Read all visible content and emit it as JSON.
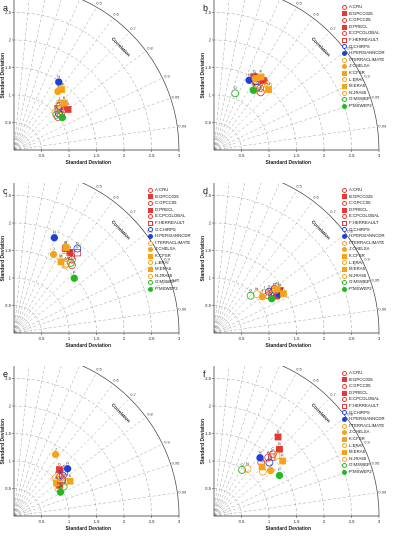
{
  "labels": {
    "std_axis": "Standard Deviation",
    "corr_axis": "Correlation"
  },
  "chart_data": [
    {
      "type": "taylor",
      "panel_label": "a",
      "xlabel": "Standard Deviation",
      "ylabel": "Standard Deviation",
      "corr_label": "Correlation",
      "std_ticks": [
        0.5,
        1,
        1.5,
        2,
        2.5,
        3
      ],
      "std_tick_labels": [
        "0.5",
        "1",
        "1.5",
        "2",
        "2.5",
        "3"
      ],
      "corr_ticks": [
        0.1,
        0.2,
        0.3,
        0.4,
        0.5,
        0.6,
        0.7,
        0.8,
        0.9,
        0.95,
        0.99
      ],
      "corr_tick_labels": [
        "0.1",
        "0.2",
        "0.3",
        "0.4",
        "0.5",
        "0.6",
        "0.7",
        "0.8",
        "0.9",
        "0.95",
        "0.99"
      ],
      "points": [
        {
          "label": "A",
          "std": 1.0,
          "corr": 0.8
        },
        {
          "label": "B",
          "std": 1.23,
          "corr": 0.8
        },
        {
          "label": "C",
          "std": 1.07,
          "corr": 0.8
        },
        {
          "label": "D",
          "std": 1.2,
          "corr": 0.76
        },
        {
          "label": "E",
          "std": 1.15,
          "corr": 0.72
        },
        {
          "label": "F",
          "std": 1.1,
          "corr": 0.73
        },
        {
          "label": "G",
          "std": 1.05,
          "corr": 0.78
        },
        {
          "label": "H",
          "std": 1.48,
          "corr": 0.55
        },
        {
          "label": "I",
          "std": 1.18,
          "corr": 0.7
        },
        {
          "label": "J",
          "std": 1.33,
          "corr": 0.6
        },
        {
          "label": "K",
          "std": 1.25,
          "corr": 0.73
        },
        {
          "label": "L",
          "std": 1.12,
          "corr": 0.75
        },
        {
          "label": "M",
          "std": 1.4,
          "corr": 0.62
        },
        {
          "label": "N",
          "std": 1.02,
          "corr": 0.74
        },
        {
          "label": "O",
          "std": 1.0,
          "corr": 0.77
        },
        {
          "label": "P",
          "std": 1.06,
          "corr": 0.83
        }
      ]
    },
    {
      "type": "taylor",
      "panel_label": "b",
      "xlabel": "Standard Deviation",
      "ylabel": "Standard Deviation",
      "corr_label": "Correlation",
      "std_ticks": [
        0.5,
        1,
        1.5,
        2,
        2.5,
        3
      ],
      "std_tick_labels": [
        "0.5",
        "1",
        "1.5",
        "2",
        "2.5",
        "3"
      ],
      "corr_ticks": [
        0.1,
        0.2,
        0.3,
        0.4,
        0.5,
        0.6,
        0.7,
        0.8,
        0.9,
        0.95,
        0.99
      ],
      "corr_tick_labels": [
        "0.1",
        "0.2",
        "0.3",
        "0.4",
        "0.5",
        "0.6",
        "0.7",
        "0.8",
        "0.9",
        "0.95",
        "0.99"
      ],
      "points": [
        {
          "label": "A",
          "std": 1.35,
          "corr": 0.63
        },
        {
          "label": "B",
          "std": 1.55,
          "corr": 0.58
        },
        {
          "label": "C",
          "std": 1.4,
          "corr": 0.6
        },
        {
          "label": "D",
          "std": 1.52,
          "corr": 0.48
        },
        {
          "label": "E",
          "std": 1.46,
          "corr": 0.52
        },
        {
          "label": "F",
          "std": 1.42,
          "corr": 0.55
        },
        {
          "label": "G",
          "std": 1.38,
          "corr": 0.57
        },
        {
          "label": "H",
          "std": 1.42,
          "corr": 0.45
        },
        {
          "label": "I",
          "std": 1.45,
          "corr": 0.62
        },
        {
          "label": "J",
          "std": 1.5,
          "corr": 0.5
        },
        {
          "label": "K",
          "std": 1.58,
          "corr": 0.54
        },
        {
          "label": "L",
          "std": 1.53,
          "corr": 0.64
        },
        {
          "label": "M",
          "std": 1.48,
          "corr": 0.67
        },
        {
          "label": "N",
          "std": 1.32,
          "corr": 0.56
        },
        {
          "label": "O",
          "std": 1.1,
          "corr": 0.35
        },
        {
          "label": "P",
          "std": 1.3,
          "corr": 0.55
        }
      ]
    },
    {
      "type": "taylor",
      "panel_label": "c",
      "xlabel": "Standard Deviation",
      "ylabel": "Standard Deviation",
      "corr_label": "Correlation",
      "std_ticks": [
        0.5,
        1,
        1.5,
        2,
        2.5,
        3
      ],
      "std_tick_labels": [
        "0.5",
        "1",
        "1.5",
        "2",
        "2.5",
        "3"
      ],
      "corr_ticks": [
        0.1,
        0.2,
        0.3,
        0.4,
        0.5,
        0.6,
        0.7,
        0.8,
        0.9,
        0.95,
        0.99
      ],
      "corr_tick_labels": [
        "0.1",
        "0.2",
        "0.3",
        "0.4",
        "0.5",
        "0.6",
        "0.7",
        "0.8",
        "0.9",
        "0.95",
        "0.99"
      ],
      "points": [
        {
          "label": "A",
          "std": 1.62,
          "corr": 0.65
        },
        {
          "label": "B",
          "std": 1.78,
          "corr": 0.57
        },
        {
          "label": "C",
          "std": 1.7,
          "corr": 0.62
        },
        {
          "label": "D",
          "std": 1.8,
          "corr": 0.52
        },
        {
          "label": "E",
          "std": 1.74,
          "corr": 0.6
        },
        {
          "label": "F",
          "std": 1.86,
          "corr": 0.62
        },
        {
          "label": "G",
          "std": 1.92,
          "corr": 0.6
        },
        {
          "label": "H",
          "std": 1.88,
          "corr": 0.39
        },
        {
          "label": "I",
          "std": 1.66,
          "corr": 0.55
        },
        {
          "label": "J",
          "std": 1.6,
          "corr": 0.45
        },
        {
          "label": "K",
          "std": 1.82,
          "corr": 0.52
        },
        {
          "label": "L",
          "std": 1.55,
          "corr": 0.6
        },
        {
          "label": "M",
          "std": 1.55,
          "corr": 0.55
        },
        {
          "label": "N",
          "std": 1.58,
          "corr": 0.6
        },
        {
          "label": "O",
          "std": 1.64,
          "corr": 0.63
        },
        {
          "label": "P",
          "std": 1.48,
          "corr": 0.74
        }
      ]
    },
    {
      "type": "taylor",
      "panel_label": "d",
      "xlabel": "Standard Deviation",
      "ylabel": "Standard Deviation",
      "corr_label": "Correlation",
      "std_ticks": [
        0.5,
        1,
        1.5,
        2,
        2.5,
        3
      ],
      "std_tick_labels": [
        "0.5",
        "1",
        "1.5",
        "2",
        "2.5",
        "3"
      ],
      "corr_ticks": [
        0.1,
        0.2,
        0.3,
        0.4,
        0.5,
        0.6,
        0.7,
        0.8,
        0.9,
        0.95,
        0.99
      ],
      "corr_tick_labels": [
        "0.1",
        "0.2",
        "0.3",
        "0.4",
        "0.5",
        "0.6",
        "0.7",
        "0.8",
        "0.9",
        "0.95",
        "0.99"
      ],
      "points": [
        {
          "label": "A",
          "std": 1.2,
          "corr": 0.82
        },
        {
          "label": "B",
          "std": 1.42,
          "corr": 0.84
        },
        {
          "label": "C",
          "std": 1.3,
          "corr": 0.82
        },
        {
          "label": "D",
          "std": 1.32,
          "corr": 0.86
        },
        {
          "label": "E",
          "std": 1.35,
          "corr": 0.81
        },
        {
          "label": "F",
          "std": 1.27,
          "corr": 0.83
        },
        {
          "label": "G",
          "std": 1.25,
          "corr": 0.8
        },
        {
          "label": "H",
          "std": 1.38,
          "corr": 0.86
        },
        {
          "label": "I",
          "std": 1.17,
          "corr": 0.78
        },
        {
          "label": "J",
          "std": 1.1,
          "corr": 0.8
        },
        {
          "label": "K",
          "std": 1.45,
          "corr": 0.87
        },
        {
          "label": "L",
          "std": 1.37,
          "corr": 0.82
        },
        {
          "label": "M",
          "std": 1.4,
          "corr": 0.82
        },
        {
          "label": "N",
          "std": 1.05,
          "corr": 0.74
        },
        {
          "label": "O",
          "std": 0.95,
          "corr": 0.7
        },
        {
          "label": "P",
          "std": 1.22,
          "corr": 0.86
        }
      ]
    },
    {
      "type": "taylor",
      "panel_label": "e",
      "xlabel": "Standard Deviation",
      "ylabel": "Standard Deviation",
      "corr_label": "Correlation",
      "std_ticks": [
        0.5,
        1,
        1.5,
        2,
        2.5,
        3
      ],
      "std_tick_labels": [
        "0.5",
        "1",
        "1.5",
        "2",
        "2.5",
        "3"
      ],
      "corr_ticks": [
        0.1,
        0.2,
        0.3,
        0.4,
        0.5,
        0.6,
        0.7,
        0.8,
        0.9,
        0.95,
        0.99
      ],
      "corr_tick_labels": [
        "0.1",
        "0.2",
        "0.3",
        "0.4",
        "0.5",
        "0.6",
        "0.7",
        "0.8",
        "0.9",
        "0.95",
        "0.99"
      ],
      "points": [
        {
          "label": "A",
          "std": 1.08,
          "corr": 0.81
        },
        {
          "label": "B",
          "std": 1.0,
          "corr": 0.83
        },
        {
          "label": "C",
          "std": 1.1,
          "corr": 0.8
        },
        {
          "label": "D",
          "std": 1.18,
          "corr": 0.7
        },
        {
          "label": "E",
          "std": 1.1,
          "corr": 0.76
        },
        {
          "label": "F",
          "std": 1.22,
          "corr": 0.75
        },
        {
          "label": "G",
          "std": 1.15,
          "corr": 0.77
        },
        {
          "label": "H",
          "std": 1.3,
          "corr": 0.75
        },
        {
          "label": "I",
          "std": 1.02,
          "corr": 0.74
        },
        {
          "label": "J",
          "std": 1.35,
          "corr": 0.56
        },
        {
          "label": "K",
          "std": 1.2,
          "corr": 0.85
        },
        {
          "label": "L",
          "std": 1.12,
          "corr": 0.83
        },
        {
          "label": "M",
          "std": 0.98,
          "corr": 0.79
        },
        {
          "label": "N",
          "std": 0.95,
          "corr": 0.85
        },
        {
          "label": "O",
          "std": 1.05,
          "corr": 0.86
        },
        {
          "label": "P",
          "std": 0.95,
          "corr": 0.89
        }
      ]
    },
    {
      "type": "taylor",
      "panel_label": "f",
      "xlabel": "Standard Deviation",
      "ylabel": "Standard Deviation",
      "corr_label": "Correlation",
      "std_ticks": [
        0.5,
        1,
        1.5,
        2,
        2.5,
        3
      ],
      "std_tick_labels": [
        "0.5",
        "1",
        "1.5",
        "2",
        "2.5",
        "3"
      ],
      "corr_ticks": [
        0.1,
        0.2,
        0.3,
        0.4,
        0.5,
        0.6,
        0.7,
        0.8,
        0.9,
        0.95,
        0.99
      ],
      "corr_tick_labels": [
        "0.1",
        "0.2",
        "0.3",
        "0.4",
        "0.5",
        "0.6",
        "0.7",
        "0.8",
        "0.9",
        "0.95",
        "0.99"
      ],
      "points": [
        {
          "label": "A",
          "std": 1.45,
          "corr": 0.68
        },
        {
          "label": "B",
          "std": 1.7,
          "corr": 0.7
        },
        {
          "label": "C",
          "std": 1.55,
          "corr": 0.69
        },
        {
          "label": "D",
          "std": 1.85,
          "corr": 0.63
        },
        {
          "label": "E",
          "std": 1.3,
          "corr": 0.66
        },
        {
          "label": "F",
          "std": 1.5,
          "corr": 0.7
        },
        {
          "label": "G",
          "std": 1.4,
          "corr": 0.72
        },
        {
          "label": "H",
          "std": 1.35,
          "corr": 0.62
        },
        {
          "label": "I",
          "std": 1.58,
          "corr": 0.72
        },
        {
          "label": "J",
          "std": 1.32,
          "corr": 0.78
        },
        {
          "label": "K",
          "std": 1.6,
          "corr": 0.78
        },
        {
          "label": "L",
          "std": 1.2,
          "corr": 0.74
        },
        {
          "label": "M",
          "std": 1.25,
          "corr": 0.7
        },
        {
          "label": "N",
          "std": 1.05,
          "corr": 0.58
        },
        {
          "label": "O",
          "std": 0.98,
          "corr": 0.52
        },
        {
          "label": "P",
          "std": 1.4,
          "corr": 0.85
        }
      ]
    }
  ],
  "series_legend": [
    {
      "key": "A",
      "name": "A:CRU",
      "shape": "circle",
      "filled": false,
      "color": "#e53935"
    },
    {
      "key": "B",
      "name": "B:GPCC025",
      "shape": "square",
      "filled": true,
      "color": "#e53935"
    },
    {
      "key": "C",
      "name": "C:GPCC05",
      "shape": "circle",
      "filled": false,
      "color": "#e53935"
    },
    {
      "key": "D",
      "name": "D:PRECL",
      "shape": "square",
      "filled": true,
      "color": "#e53935"
    },
    {
      "key": "E",
      "name": "E:CPCGLOBAL",
      "shape": "circle",
      "filled": false,
      "color": "#e53935"
    },
    {
      "key": "F",
      "name": "F:HERREAULT",
      "shape": "square",
      "filled": false,
      "color": "#e53935"
    },
    {
      "key": "G",
      "name": "G:CHIRPS",
      "shape": "circle",
      "filled": false,
      "color": "#1e40d8"
    },
    {
      "key": "H",
      "name": "H:PERSIANNCDR",
      "shape": "circle",
      "filled": true,
      "color": "#1e40d8"
    },
    {
      "key": "I",
      "name": "I:TERRACLIMATE",
      "shape": "circle",
      "filled": false,
      "color": "#f5a31a"
    },
    {
      "key": "J",
      "name": "J:CHELSA",
      "shape": "circle",
      "filled": true,
      "color": "#f5a31a"
    },
    {
      "key": "K",
      "name": "K:CFSR",
      "shape": "square",
      "filled": true,
      "color": "#f5a31a"
    },
    {
      "key": "L",
      "name": "L:ERAI",
      "shape": "circle",
      "filled": false,
      "color": "#f5a31a"
    },
    {
      "key": "M",
      "name": "M:ERA5",
      "shape": "square",
      "filled": true,
      "color": "#f5a31a"
    },
    {
      "key": "N",
      "name": "N:JRA55",
      "shape": "circle",
      "filled": false,
      "color": "#f5a31a"
    },
    {
      "key": "O",
      "name": "O:MSWEP",
      "shape": "circle",
      "filled": false,
      "color": "#22b822"
    },
    {
      "key": "P",
      "name": "P:MSWEP2",
      "shape": "circle",
      "filled": true,
      "color": "#22b822"
    }
  ]
}
